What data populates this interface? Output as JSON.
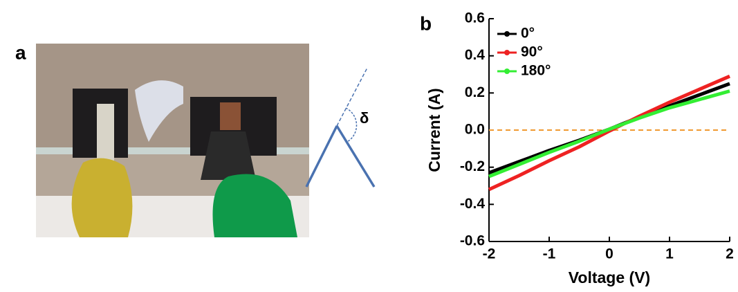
{
  "figure": {
    "panel_a": "a",
    "panel_b": "b",
    "angle_symbol": "δ"
  },
  "chart_data": {
    "type": "line",
    "x_label": "Voltage (V)",
    "y_label": "Current (A)",
    "x": [
      -2,
      -1.5,
      -1,
      -0.5,
      0,
      0.5,
      1,
      1.5,
      2
    ],
    "series": [
      {
        "name": "0°",
        "color": "#000000",
        "values": [
          -0.23,
          -0.17,
          -0.11,
          -0.055,
          0.005,
          0.07,
          0.13,
          0.19,
          0.25
        ]
      },
      {
        "name": "90°",
        "color": "#ee2222",
        "values": [
          -0.32,
          -0.245,
          -0.165,
          -0.09,
          -0.005,
          0.075,
          0.15,
          0.22,
          0.29
        ]
      },
      {
        "name": "180°",
        "color": "#33ee33",
        "values": [
          -0.25,
          -0.185,
          -0.12,
          -0.06,
          0.005,
          0.065,
          0.12,
          0.165,
          0.21
        ]
      }
    ],
    "xlim": [
      -2,
      2
    ],
    "xticks": [
      -2,
      -1,
      0,
      1,
      2
    ],
    "ylim": [
      -0.6,
      0.6
    ],
    "yticks": [
      -0.6,
      -0.4,
      -0.2,
      {
        "value": 0,
        "label": "0.0"
      },
      0.2,
      0.4,
      0.6
    ],
    "reference_line": {
      "value": 0,
      "color": "#f09a30"
    },
    "legend": "upper-left"
  }
}
